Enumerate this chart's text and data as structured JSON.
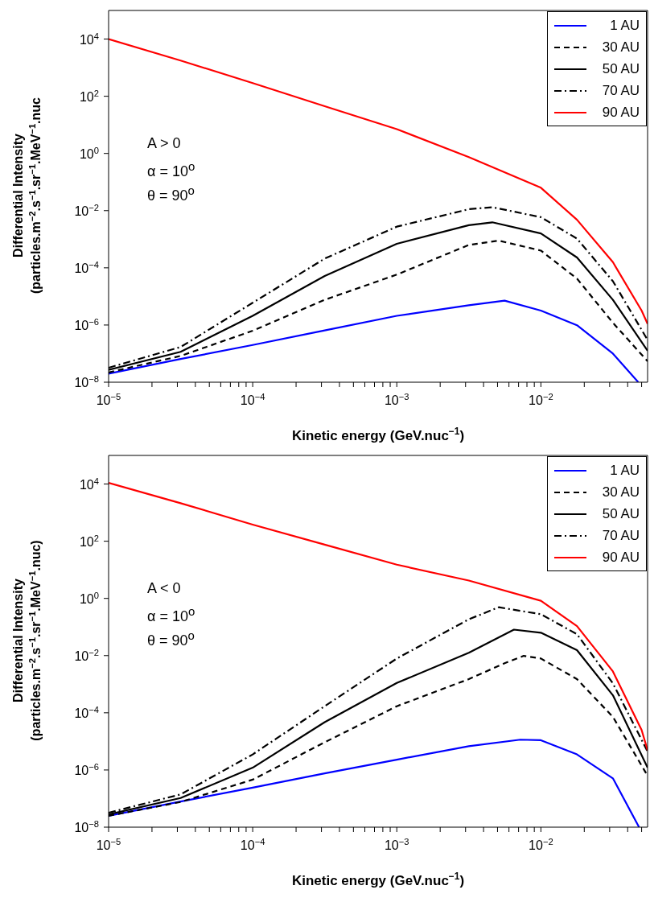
{
  "chart_data": [
    {
      "type": "line",
      "xlabel": "Kinetic energy (GeV.nuc$^{−1}$)",
      "ylabel": "Differential Intensity\n(particles.m$^{−2}$.s$^{−1}$.sr$^{−1}$.MeV$^{−1}$.nuc",
      "annotations": [
        "A > 0",
        "α = 10$^{o}$",
        "θ = 90$^{o}$"
      ],
      "log": "xy",
      "legend": "top right",
      "grid": false,
      "xlim": [
        1e-05,
        0.055
      ],
      "ylim": [
        1e-08,
        100000
      ],
      "xticks": [
        {
          "value": 1e-05,
          "label": "10$^{−5}$"
        },
        {
          "value": 2e-05,
          "label": null
        },
        {
          "value": 3e-05,
          "label": null
        },
        {
          "value": 4e-05,
          "label": null
        },
        {
          "value": 5e-05,
          "label": null
        },
        {
          "value": 6e-05,
          "label": null
        },
        {
          "value": 7e-05,
          "label": null
        },
        {
          "value": 8e-05,
          "label": null
        },
        {
          "value": 9e-05,
          "label": null
        },
        {
          "value": 0.0001,
          "label": "10$^{−4}$"
        },
        {
          "value": 0.0002,
          "label": null
        },
        {
          "value": 0.0003,
          "label": null
        },
        {
          "value": 0.0004,
          "label": null
        },
        {
          "value": 0.0005,
          "label": null
        },
        {
          "value": 0.0006,
          "label": null
        },
        {
          "value": 0.0007,
          "label": null
        },
        {
          "value": 0.0008,
          "label": null
        },
        {
          "value": 0.0009,
          "label": null
        },
        {
          "value": 0.001,
          "label": "10$^{−3}$"
        },
        {
          "value": 0.002,
          "label": null
        },
        {
          "value": 0.003,
          "label": null
        },
        {
          "value": 0.004,
          "label": null
        },
        {
          "value": 0.005,
          "label": null
        },
        {
          "value": 0.006,
          "label": null
        },
        {
          "value": 0.007,
          "label": null
        },
        {
          "value": 0.008,
          "label": null
        },
        {
          "value": 0.009,
          "label": null
        },
        {
          "value": 0.01,
          "label": "10$^{−2}$"
        },
        {
          "value": 0.02,
          "label": null
        },
        {
          "value": 0.03,
          "label": null
        },
        {
          "value": 0.04,
          "label": null
        },
        {
          "value": 0.05,
          "label": null
        }
      ],
      "yticks": [
        {
          "value": 1e-08,
          "label": "10$^{−8}$"
        },
        {
          "value": 1e-06,
          "label": "10$^{−6}$"
        },
        {
          "value": 0.0001,
          "label": "10$^{−4}$"
        },
        {
          "value": 0.01,
          "label": "10$^{−2}$"
        },
        {
          "value": 1,
          "label": "10$^{0}$"
        },
        {
          "value": 100,
          "label": "10$^{2}$"
        },
        {
          "value": 10000,
          "label": "10$^{4}$"
        }
      ],
      "series": [
        {
          "name": "1 AU",
          "color": "#0000ff",
          "line_style": "solid",
          "x": [
            1e-05,
            3.16e-05,
            0.0001,
            0.000316,
            0.001,
            0.00316,
            0.0056,
            0.01,
            0.0178,
            0.0316,
            0.0474
          ],
          "values": [
            2e-08,
            6.5e-08,
            2e-07,
            6.5e-07,
            2.1e-06,
            4.9e-06,
            7.1e-06,
            3.2e-06,
            9.8e-07,
            1e-07,
            1e-08
          ]
        },
        {
          "name": "30 AU",
          "color": "#000000",
          "line_style": "dashed",
          "x": [
            1e-05,
            3.16e-05,
            0.0001,
            0.000316,
            0.001,
            0.00316,
            0.0051,
            0.01,
            0.0178,
            0.0316,
            0.055
          ],
          "values": [
            2.2e-08,
            8.3e-08,
            6.3e-07,
            7.6e-06,
            5.8e-05,
            0.00063,
            0.00089,
            0.0004,
            4.2e-05,
            1.2e-06,
            5.4e-08
          ]
        },
        {
          "name": "50 AU",
          "color": "#000000",
          "line_style": "solid",
          "x": [
            1e-05,
            3.16e-05,
            0.0001,
            0.000316,
            0.001,
            0.00316,
            0.0046,
            0.01,
            0.0178,
            0.0316,
            0.055
          ],
          "values": [
            2.7e-08,
            1.15e-07,
            2.1e-06,
            5.2e-05,
            0.00069,
            0.0031,
            0.0039,
            0.0016,
            0.00023,
            7.6e-06,
            1.26e-07
          ]
        },
        {
          "name": "70 AU",
          "color": "#000000",
          "line_style": "dashdot",
          "x": [
            1e-05,
            3.16e-05,
            0.0001,
            0.000316,
            0.001,
            0.00316,
            0.0046,
            0.01,
            0.0178,
            0.0316,
            0.055
          ],
          "values": [
            3.2e-08,
            1.7e-07,
            6e-06,
            0.00021,
            0.00275,
            0.0112,
            0.0132,
            0.0059,
            0.00105,
            3.4e-05,
            3e-07
          ]
        },
        {
          "name": "90 AU",
          "color": "#ff0000",
          "line_style": "solid",
          "x": [
            1e-05,
            3.16e-05,
            0.0001,
            0.000316,
            0.001,
            0.00316,
            0.01,
            0.0178,
            0.0316,
            0.05,
            0.055
          ],
          "values": [
            10000,
            1778,
            288,
            44.7,
            7.08,
            0.741,
            0.0631,
            0.00479,
            0.000158,
            3.2e-06,
            1.1e-06
          ]
        }
      ]
    },
    {
      "type": "line",
      "xlabel": "Kinetic energy (GeV.nuc$^{−1}$)",
      "ylabel": "Differential Intensity\n(particles.m$^{−2}$.s$^{−1}$.sr$^{−1}$.MeV$^{−1}$.nuc)",
      "annotations": [
        "A < 0",
        "α = 10$^{o}$",
        "θ = 90$^{o}$"
      ],
      "log": "xy",
      "legend": "top right",
      "grid": false,
      "xlim": [
        1e-05,
        0.055
      ],
      "ylim": [
        1e-08,
        100000
      ],
      "xticks": [
        {
          "value": 1e-05,
          "label": "10$^{−5}$"
        },
        {
          "value": 2e-05,
          "label": null
        },
        {
          "value": 3e-05,
          "label": null
        },
        {
          "value": 4e-05,
          "label": null
        },
        {
          "value": 5e-05,
          "label": null
        },
        {
          "value": 6e-05,
          "label": null
        },
        {
          "value": 7e-05,
          "label": null
        },
        {
          "value": 8e-05,
          "label": null
        },
        {
          "value": 9e-05,
          "label": null
        },
        {
          "value": 0.0001,
          "label": "10$^{−4}$"
        },
        {
          "value": 0.0002,
          "label": null
        },
        {
          "value": 0.0003,
          "label": null
        },
        {
          "value": 0.0004,
          "label": null
        },
        {
          "value": 0.0005,
          "label": null
        },
        {
          "value": 0.0006,
          "label": null
        },
        {
          "value": 0.0007,
          "label": null
        },
        {
          "value": 0.0008,
          "label": null
        },
        {
          "value": 0.0009,
          "label": null
        },
        {
          "value": 0.001,
          "label": "10$^{−3}$"
        },
        {
          "value": 0.002,
          "label": null
        },
        {
          "value": 0.003,
          "label": null
        },
        {
          "value": 0.004,
          "label": null
        },
        {
          "value": 0.005,
          "label": null
        },
        {
          "value": 0.006,
          "label": null
        },
        {
          "value": 0.007,
          "label": null
        },
        {
          "value": 0.008,
          "label": null
        },
        {
          "value": 0.009,
          "label": null
        },
        {
          "value": 0.01,
          "label": "10$^{−2}$"
        },
        {
          "value": 0.02,
          "label": null
        },
        {
          "value": 0.03,
          "label": null
        },
        {
          "value": 0.04,
          "label": null
        },
        {
          "value": 0.05,
          "label": null
        }
      ],
      "yticks": [
        {
          "value": 1e-08,
          "label": "10$^{−8}$"
        },
        {
          "value": 1e-06,
          "label": "10$^{−6}$"
        },
        {
          "value": 0.0001,
          "label": "10$^{−4}$"
        },
        {
          "value": 0.01,
          "label": "10$^{−2}$"
        },
        {
          "value": 1,
          "label": "10$^{0}$"
        },
        {
          "value": 100,
          "label": "10$^{2}$"
        },
        {
          "value": 10000,
          "label": "10$^{4}$"
        }
      ],
      "series": [
        {
          "name": "1 AU",
          "color": "#0000ff",
          "line_style": "solid",
          "x": [
            1e-05,
            3.16e-05,
            0.0001,
            0.000316,
            0.001,
            0.00316,
            0.0072,
            0.01,
            0.0178,
            0.0316,
            0.048
          ],
          "values": [
            2.5e-08,
            7.9e-08,
            2.4e-07,
            7.6e-07,
            2.3e-06,
            6.8e-06,
            1.15e-05,
            1.1e-05,
            3.5e-06,
            5.1e-07,
            1e-08
          ]
        },
        {
          "name": "30 AU",
          "color": "#000000",
          "line_style": "dashed",
          "x": [
            1e-05,
            3.16e-05,
            0.0001,
            0.000316,
            0.001,
            0.00316,
            0.0056,
            0.0076,
            0.01,
            0.0178,
            0.0316,
            0.055
          ],
          "values": [
            2.5e-08,
            7.6e-08,
            4.6e-07,
            9.3e-06,
            0.00017,
            0.0015,
            0.0054,
            0.0098,
            0.0079,
            0.0015,
            7.2e-05,
            6.3e-07
          ]
        },
        {
          "name": "50 AU",
          "color": "#000000",
          "line_style": "solid",
          "x": [
            1e-05,
            3.16e-05,
            0.0001,
            0.000316,
            0.001,
            0.00316,
            0.0065,
            0.01,
            0.0178,
            0.0316,
            0.055
          ],
          "values": [
            2.8e-08,
            1.05e-07,
            1.2e-06,
            4.7e-05,
            0.0011,
            0.0126,
            0.081,
            0.063,
            0.0155,
            0.00041,
            1.2e-06
          ]
        },
        {
          "name": "70 AU",
          "color": "#000000",
          "line_style": "dashdot",
          "x": [
            1e-05,
            3.16e-05,
            0.0001,
            0.000316,
            0.001,
            0.00316,
            0.0051,
            0.01,
            0.0178,
            0.0316,
            0.055
          ],
          "values": [
            3.2e-08,
            1.4e-07,
            3.5e-06,
            0.00017,
            0.0079,
            0.186,
            0.49,
            0.28,
            0.056,
            0.00107,
            4.4e-06
          ]
        },
        {
          "name": "90 AU",
          "color": "#ff0000",
          "line_style": "solid",
          "x": [
            1e-05,
            3.16e-05,
            0.0001,
            0.000316,
            0.001,
            0.00316,
            0.01,
            0.0178,
            0.0316,
            0.05,
            0.055
          ],
          "values": [
            11000,
            2140,
            380,
            76,
            15.1,
            4.2,
            0.83,
            0.107,
            0.0028,
            2.5e-05,
            4.9e-06
          ]
        }
      ]
    }
  ]
}
